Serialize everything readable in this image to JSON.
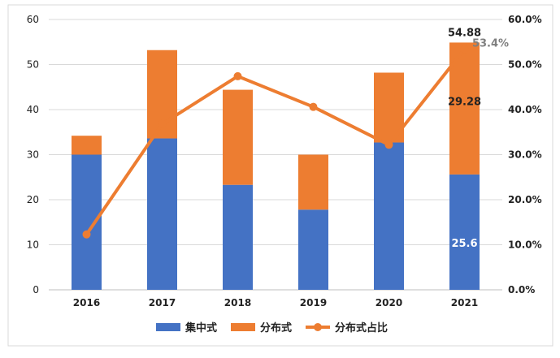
{
  "colors": {
    "centralized": "#4472C4",
    "distributed": "#ED7D31",
    "share_line": "#ED7D31",
    "grid": "#D9D9D9",
    "axis": "#BFBFBF"
  },
  "legend": {
    "items": [
      {
        "label": "集中式",
        "color": "#4472C4",
        "marker": "bar"
      },
      {
        "label": "分布式",
        "color": "#ED7D31",
        "marker": "bar"
      },
      {
        "label": "分布式占比",
        "color": "#ED7D31",
        "marker": "line-dot"
      }
    ]
  },
  "chart_data": {
    "type": "bar",
    "stacked": true,
    "categories": [
      "2016",
      "2017",
      "2018",
      "2019",
      "2020",
      "2021"
    ],
    "series": [
      {
        "name": "集中式",
        "values": [
          30.0,
          33.6,
          23.3,
          17.8,
          32.7,
          25.6
        ],
        "color": "#4472C4"
      },
      {
        "name": "分布式",
        "values": [
          4.2,
          19.6,
          21.1,
          12.2,
          15.5,
          29.28
        ],
        "color": "#ED7D31"
      },
      {
        "name": "分布式占比",
        "type": "line",
        "axis": "right",
        "values": [
          12.3,
          36.8,
          47.4,
          40.6,
          32.2,
          53.4
        ],
        "color": "#ED7D31"
      }
    ],
    "ylim": [
      0,
      60
    ],
    "yticks": [
      "0",
      "10",
      "20",
      "30",
      "40",
      "50",
      "60"
    ],
    "y2lim": [
      0,
      60
    ],
    "y2ticks": [
      "0.0%",
      "10.0%",
      "20.0%",
      "30.0%",
      "40.0%",
      "50.0%",
      "60.0%"
    ],
    "annotations": [
      {
        "text": "54.88",
        "category": "2021",
        "kind": "total"
      },
      {
        "text": "53.4%",
        "category": "2021",
        "kind": "share"
      },
      {
        "text": "29.28",
        "category": "2021",
        "kind": "distributed"
      },
      {
        "text": "25.6",
        "category": "2021",
        "kind": "centralized"
      }
    ],
    "grid": true,
    "legend_position": "bottom"
  }
}
